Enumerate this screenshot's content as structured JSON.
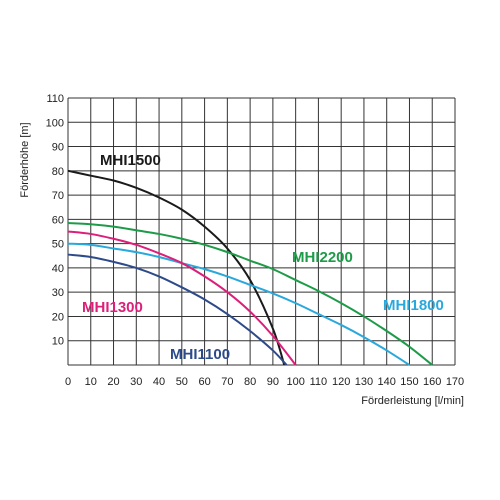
{
  "chart_data": {
    "type": "line",
    "xlabel": "Förderleistung [l/min]",
    "ylabel": "Förderhöhe [m]",
    "xlim": [
      0,
      170
    ],
    "ylim": [
      0,
      110
    ],
    "x_ticks": [
      "0",
      "10",
      "20",
      "30",
      "40",
      "50",
      "60",
      "70",
      "80",
      "90",
      "100",
      "110",
      "120",
      "130",
      "140",
      "150",
      "160",
      "170"
    ],
    "y_ticks": [
      "10",
      "20",
      "30",
      "40",
      "50",
      "60",
      "70",
      "80",
      "90",
      "100",
      "110"
    ],
    "grid": true,
    "series": [
      {
        "name": "MHI1500",
        "color": "#1a1a1a",
        "x": [
          0,
          10,
          20,
          30,
          40,
          50,
          60,
          70,
          80,
          90,
          95
        ],
        "y": [
          80,
          78,
          76,
          73,
          69,
          64,
          57,
          48,
          35,
          15,
          0
        ]
      },
      {
        "name": "MHI2200",
        "color": "#1e9b48",
        "x": [
          0,
          10,
          20,
          30,
          40,
          50,
          60,
          70,
          80,
          90,
          100,
          110,
          120,
          130,
          140,
          150,
          160
        ],
        "y": [
          58.5,
          58,
          57,
          55.5,
          54,
          52,
          49.5,
          46.5,
          43,
          39.5,
          35,
          30.5,
          25.5,
          20,
          14,
          7.5,
          0
        ]
      },
      {
        "name": "MHI1800",
        "color": "#29a8dc",
        "x": [
          0,
          10,
          20,
          30,
          40,
          50,
          60,
          70,
          80,
          90,
          100,
          110,
          120,
          130,
          140,
          150
        ],
        "y": [
          50,
          49.5,
          48,
          46.5,
          44.5,
          42,
          39.5,
          36.5,
          33,
          29.5,
          25.5,
          21,
          16.5,
          11.5,
          6,
          0
        ]
      },
      {
        "name": "MHI1300",
        "color": "#dc1f79",
        "x": [
          0,
          10,
          20,
          30,
          40,
          50,
          60,
          70,
          80,
          90,
          100
        ],
        "y": [
          55,
          54,
          52,
          49.5,
          46,
          42,
          36.5,
          30,
          22,
          12,
          0
        ]
      },
      {
        "name": "MHI1100",
        "color": "#2d4a8a",
        "x": [
          0,
          10,
          20,
          30,
          40,
          50,
          60,
          70,
          80,
          90,
          96
        ],
        "y": [
          45.5,
          44.5,
          42.5,
          40,
          36.5,
          32,
          27,
          21,
          14,
          6,
          0
        ]
      }
    ]
  }
}
